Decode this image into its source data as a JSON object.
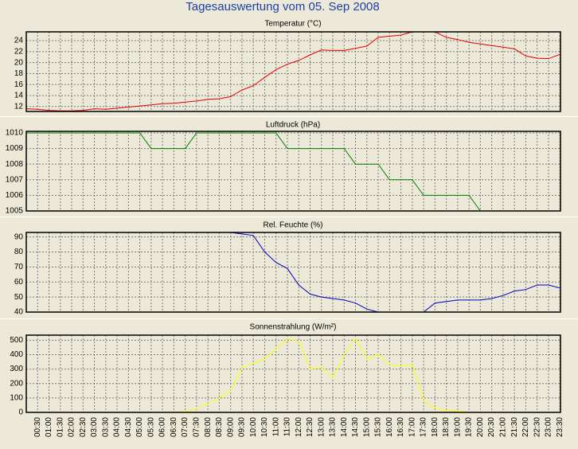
{
  "title": "Tagesauswertung vom 05. Sep 2008",
  "chart_data": [
    {
      "type": "line",
      "title": "Temperatur (°C)",
      "color": "#e00000",
      "ylim": [
        11.1,
        25.6
      ],
      "yticks": [
        12,
        14,
        16,
        18,
        20,
        22,
        24
      ],
      "grid": true,
      "values": [
        11.6,
        11.5,
        11.3,
        11.2,
        11.2,
        11.3,
        11.6,
        11.5,
        11.7,
        11.9,
        12.1,
        12.3,
        12.5,
        12.6,
        12.8,
        13.0,
        13.3,
        13.4,
        13.8,
        15.0,
        15.8,
        17.3,
        18.7,
        19.7,
        20.4,
        21.4,
        22.3,
        22.2,
        22.2,
        22.6,
        23.0,
        24.6,
        24.8,
        25.0,
        25.6,
        25.6,
        25.6,
        24.6,
        24.2,
        23.7,
        23.4,
        23.1,
        22.8,
        22.5,
        21.2,
        20.8,
        20.7,
        21.5
      ],
      "note_last": null
    },
    {
      "type": "line",
      "title": "Luftdruck (hPa)",
      "color": "#008000",
      "ylim": [
        1005,
        1010.1
      ],
      "yticks": [
        1005,
        1006,
        1007,
        1008,
        1009,
        1010
      ],
      "grid": true,
      "values": [
        1010,
        1010,
        1010,
        1010,
        1010,
        1010,
        1010,
        1010,
        1010,
        1010,
        1010,
        1009,
        1009,
        1009,
        1009,
        1010,
        1010,
        1010,
        1010,
        1010,
        1010,
        1010,
        1010,
        1009,
        1009,
        1009,
        1009,
        1009,
        1009,
        1008,
        1008,
        1008,
        1007,
        1007,
        1007,
        1006,
        1006,
        1006,
        1006,
        1006,
        1005,
        1005,
        1005,
        1005,
        1005,
        1005,
        1005,
        1005
      ]
    },
    {
      "type": "line",
      "title": "Rel. Feuchte (%)",
      "color": "#0000c0",
      "ylim": [
        40,
        93
      ],
      "yticks": [
        40,
        50,
        60,
        70,
        80,
        90
      ],
      "grid": true,
      "values": [
        93,
        93,
        93,
        93,
        93,
        93,
        93,
        93,
        93,
        93,
        93,
        93,
        93,
        93,
        93,
        93,
        93,
        93,
        93,
        92,
        91,
        80,
        73,
        69,
        58,
        52,
        50,
        49,
        48,
        46,
        42,
        40,
        40,
        40,
        40,
        40,
        46,
        47,
        48,
        48,
        48,
        49,
        51,
        54,
        55,
        58,
        58,
        56
      ]
    },
    {
      "type": "line",
      "title": "Sonnenstrahlung (W/m²)",
      "color": "#ffff00",
      "ylim": [
        0,
        535
      ],
      "yticks": [
        0,
        100,
        200,
        300,
        400,
        500
      ],
      "grid": true,
      "values": [
        0,
        0,
        0,
        0,
        0,
        0,
        0,
        0,
        0,
        0,
        0,
        0,
        0,
        0,
        5,
        25,
        60,
        100,
        150,
        310,
        340,
        370,
        440,
        510,
        490,
        300,
        310,
        240,
        400,
        510,
        370,
        400,
        330,
        325,
        330,
        80,
        30,
        15,
        10,
        0,
        0,
        0,
        0,
        0,
        0,
        0,
        0,
        0
      ],
      "categories": [
        null,
        "00:30",
        "01:00",
        "01:30",
        "02:00",
        "02:30",
        "03:00",
        "03:30",
        "04:00",
        "04:30",
        "05:00",
        "05:30",
        "06:00",
        "06:30",
        "07:00",
        "07:30",
        "08:00",
        "08:30",
        "09:00",
        "09:30",
        "10:00",
        "10:30",
        "11:00",
        "11:30",
        "12:00",
        "12:30",
        "13:00",
        "13:30",
        "14:00",
        "14:30",
        "15:00",
        "15:30",
        "16:00",
        "16:30",
        "17:00",
        "17:30",
        "18:00",
        "18:30",
        "19:00",
        "19:30",
        "20:00",
        "20:30",
        "21:00",
        "21:30",
        "22:00",
        "22:30",
        "23:00",
        "23:30"
      ]
    }
  ]
}
